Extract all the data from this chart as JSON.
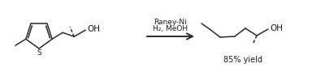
{
  "background_color": "#ffffff",
  "arrow_text_line1": "Raney-Ni",
  "arrow_text_line2": "H₂, MeOH",
  "yield_text": "85% yield",
  "line_color": "#2a2a2a",
  "text_color": "#1a1a1a",
  "fig_width": 4.0,
  "fig_height": 0.89
}
